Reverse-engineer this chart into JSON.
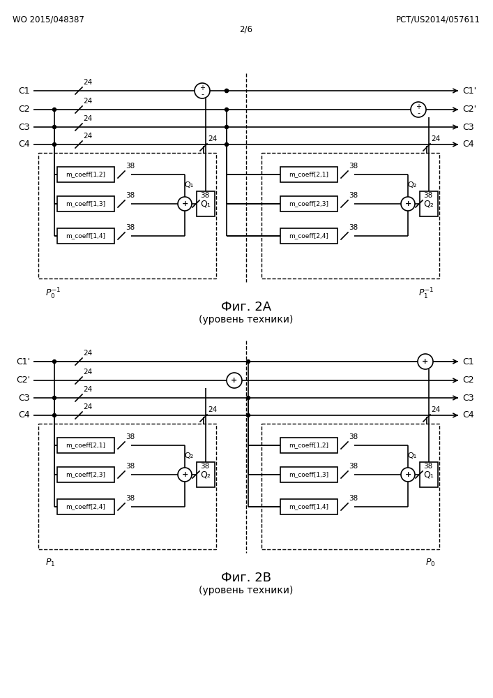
{
  "header_left": "WO 2015/048387",
  "header_right": "PCT/US2014/057611",
  "header_center": "2/6",
  "fig2a_title": "Фиг. 2A",
  "fig2a_subtitle": "(уровень техники)",
  "fig2b_title": "Фиг. 2B",
  "fig2b_subtitle": "(уровень техники)",
  "bg_color": "#ffffff",
  "line_color": "#000000"
}
